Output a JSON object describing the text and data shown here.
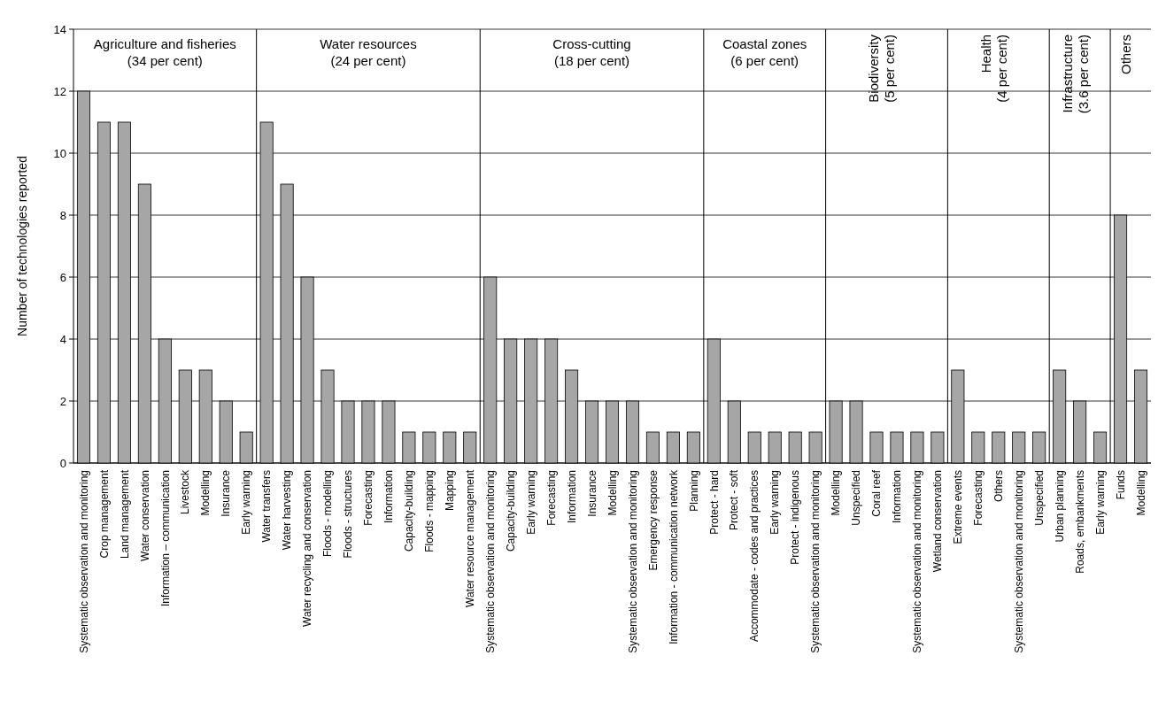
{
  "chart_data": {
    "type": "bar",
    "ylabel": "Number of technologies  reported",
    "categories": [
      "Systematic observation and monitoring",
      "Crop management",
      "Land management",
      "Water conservation",
      "Information – communication",
      "Livestock",
      "Modelling",
      "Insurance",
      "Early warning",
      "Water transfers",
      "Water harvesting",
      "Water recycling and conservation",
      "Floods - modelling",
      "Floods - structures",
      "Forecasting",
      "Information",
      "Capacity-building",
      "Floods - mapping",
      "Mapping",
      "Water resource management",
      "Systematic observation and monitoring",
      "Capacity-building",
      "Early warning",
      "Forecasting",
      "Information",
      "Insurance",
      "Modelling",
      "Systematic observation and monitoring",
      "Emergency response",
      "Information - communication network",
      "Planning",
      "Protect - hard",
      "Protect - soft",
      "Accommodate - codes and practices",
      "Early warning",
      "Protect - indigenous",
      "Systematic observation and monitoring",
      "Modelling",
      "Unspecified",
      "Coral reef",
      "Information",
      "Systematic observation and monitoring",
      "Wetland conservation",
      "Extreme events",
      "Forecasting",
      "Others",
      "Systematic observation and monitoring",
      "Unspecified",
      "Urban planning",
      "Roads, embankments",
      "Early warning",
      "Funds",
      "Modelling"
    ],
    "series": [
      {
        "color": "#a6a6a6",
        "values": [
          12,
          11,
          11,
          9,
          4,
          3,
          3,
          2,
          1,
          null,
          null,
          null,
          null,
          null,
          null,
          null,
          null,
          null,
          null,
          null,
          null,
          null,
          null,
          null,
          null,
          null,
          null,
          null,
          null,
          null,
          null,
          null,
          null,
          null,
          null,
          null,
          null,
          null,
          null,
          null,
          null,
          null,
          null,
          null,
          null,
          null,
          null,
          null,
          null,
          null,
          null,
          null,
          null
        ]
      },
      {
        "color": "#a6a6a6",
        "values": [
          null,
          null,
          null,
          null,
          null,
          null,
          null,
          null,
          null,
          11,
          9,
          6,
          3,
          2,
          2,
          2,
          1,
          1,
          1,
          1,
          null,
          null,
          null,
          null,
          null,
          null,
          null,
          null,
          null,
          null,
          null,
          null,
          null,
          null,
          null,
          null,
          null,
          null,
          null,
          null,
          null,
          null,
          null,
          null,
          null,
          null,
          null,
          null,
          null,
          null,
          null,
          null,
          null
        ]
      },
      {
        "color": "#a6a6a6",
        "values": [
          null,
          null,
          null,
          null,
          null,
          null,
          null,
          null,
          null,
          null,
          null,
          null,
          null,
          null,
          null,
          null,
          null,
          null,
          null,
          null,
          6,
          4,
          4,
          4,
          3,
          2,
          2,
          2,
          1,
          1,
          1,
          null,
          null,
          null,
          null,
          null,
          null,
          null,
          null,
          null,
          null,
          null,
          null,
          null,
          null,
          null,
          null,
          null,
          null,
          null,
          null,
          null,
          null
        ]
      },
      {
        "color": "#a6a6a6",
        "values": [
          null,
          null,
          null,
          null,
          null,
          null,
          null,
          null,
          null,
          null,
          null,
          null,
          null,
          null,
          null,
          null,
          null,
          null,
          null,
          null,
          null,
          null,
          null,
          null,
          null,
          null,
          null,
          null,
          null,
          null,
          null,
          4,
          2,
          1,
          1,
          1,
          1,
          null,
          null,
          null,
          null,
          null,
          null,
          null,
          null,
          null,
          null,
          null,
          null,
          null,
          null,
          null,
          null
        ]
      },
      {
        "color": "#a6a6a6",
        "values": [
          null,
          null,
          null,
          null,
          null,
          null,
          null,
          null,
          null,
          null,
          null,
          null,
          null,
          null,
          null,
          null,
          null,
          null,
          null,
          null,
          null,
          null,
          null,
          null,
          null,
          null,
          null,
          null,
          null,
          null,
          null,
          null,
          null,
          null,
          null,
          null,
          null,
          2,
          2,
          1,
          1,
          1,
          1,
          null,
          null,
          null,
          null,
          null,
          null,
          null,
          null,
          null,
          null
        ]
      },
      {
        "color": "#a6a6a6",
        "values": [
          null,
          null,
          null,
          null,
          null,
          null,
          null,
          null,
          null,
          null,
          null,
          null,
          null,
          null,
          null,
          null,
          null,
          null,
          null,
          null,
          null,
          null,
          null,
          null,
          null,
          null,
          null,
          null,
          null,
          null,
          null,
          null,
          null,
          null,
          null,
          null,
          null,
          null,
          null,
          null,
          null,
          null,
          null,
          3,
          1,
          1,
          1,
          1,
          null,
          null,
          null,
          null,
          null
        ]
      },
      {
        "color": "#a6a6a6",
        "values": [
          null,
          null,
          null,
          null,
          null,
          null,
          null,
          null,
          null,
          null,
          null,
          null,
          null,
          null,
          null,
          null,
          null,
          null,
          null,
          null,
          null,
          null,
          null,
          null,
          null,
          null,
          null,
          null,
          null,
          null,
          null,
          null,
          null,
          null,
          null,
          null,
          null,
          null,
          null,
          null,
          null,
          null,
          null,
          null,
          null,
          null,
          null,
          null,
          3,
          2,
          1,
          null,
          null
        ]
      },
      {
        "color": "#a6a6a6",
        "values": [
          null,
          null,
          null,
          null,
          null,
          null,
          null,
          null,
          null,
          null,
          null,
          null,
          null,
          null,
          null,
          null,
          null,
          null,
          null,
          null,
          null,
          null,
          null,
          null,
          null,
          null,
          null,
          null,
          null,
          null,
          null,
          null,
          null,
          null,
          null,
          null,
          null,
          null,
          null,
          null,
          null,
          null,
          null,
          null,
          null,
          null,
          null,
          null,
          null,
          null,
          null,
          8,
          3
        ]
      }
    ],
    "annotations": [
      "Agriculture and fisheries (34 per cent)",
      "Water resources (24 per cent)",
      "Cross-cutting (18 per cent)",
      "Coastal zones (6 per cent)",
      "Biodiversity (5 per cent)",
      "Health (4 per cent)",
      "Infrastructure (3.6 per cent)",
      "Others"
    ],
    "ylim": [
      0,
      14
    ],
    "yticks": [
      0,
      2,
      4,
      6,
      8,
      10,
      12,
      14
    ],
    "grid": "y"
  }
}
